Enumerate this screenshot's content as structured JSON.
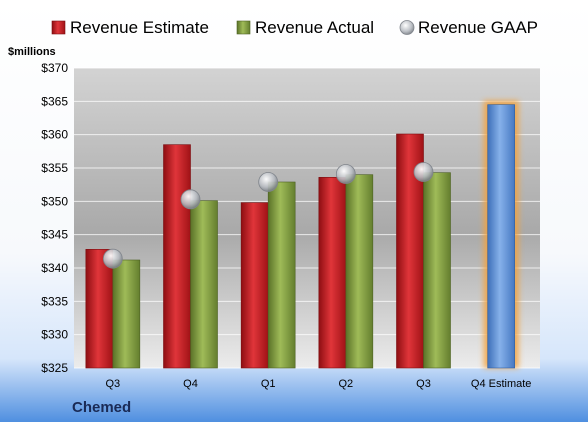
{
  "company": "Chemed",
  "chart_data": {
    "type": "bar",
    "unit_label": "$millions",
    "categories": [
      "Q3",
      "Q4",
      "Q1",
      "Q2",
      "Q3",
      "Q4 Estimate"
    ],
    "series": [
      {
        "name": "Revenue Estimate",
        "color": "#c0181d",
        "values": [
          342.8,
          358.5,
          349.8,
          353.6,
          360.1,
          null
        ]
      },
      {
        "name": "Revenue Actual",
        "color": "#7f9a3c",
        "values": [
          341.2,
          350.1,
          352.9,
          354.0,
          354.3,
          null
        ]
      },
      {
        "name": "Revenue GAAP",
        "color": "#b9bdc3",
        "type": "marker",
        "values": [
          341.4,
          350.3,
          352.9,
          354.1,
          354.4,
          null
        ]
      }
    ],
    "estimate": {
      "category": "Q4 Estimate",
      "value": 364.5,
      "color": "#5b8fd6",
      "glow": "#f5a23a"
    },
    "ylim": [
      325,
      370
    ],
    "yticks": [
      325,
      330,
      335,
      340,
      345,
      350,
      355,
      360,
      365,
      370
    ],
    "ytick_labels": [
      "$325",
      "$330",
      "$335",
      "$340",
      "$345",
      "$350",
      "$355",
      "$360",
      "$365",
      "$370"
    ],
    "grid": true,
    "legend_position": "top"
  }
}
